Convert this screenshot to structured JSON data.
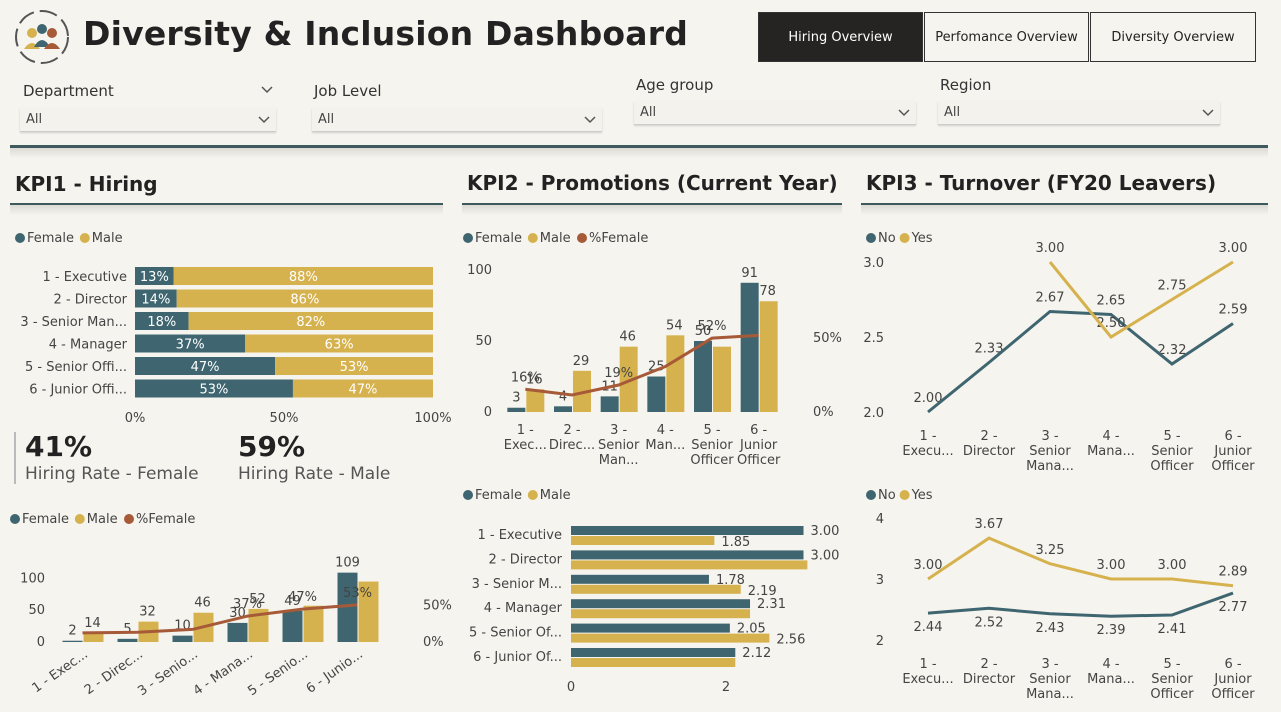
{
  "header": {
    "title": "Diversity & Inclusion Dashboard"
  },
  "nav": {
    "tabs": [
      "Hiring Overview",
      "Perfomance Overview",
      "Diversity Overview"
    ]
  },
  "filters": [
    {
      "label": "Department",
      "value": "All"
    },
    {
      "label": "Job Level",
      "value": "All"
    },
    {
      "label": "Age group",
      "value": "All"
    },
    {
      "label": "Region",
      "value": "All"
    }
  ],
  "colors": {
    "female": "#3f6670",
    "male": "#d6b24f",
    "pct": "#a65a38",
    "dark": "#252423"
  },
  "kpi1": {
    "title": "KPI1 - Hiring",
    "hiring_rate_female": "41%",
    "hiring_rate_female_label": "Hiring Rate - Female",
    "hiring_rate_male": "59%",
    "hiring_rate_male_label": "Hiring Rate - Male"
  },
  "kpi2": {
    "title": "KPI2 - Promotions (Current Year)"
  },
  "kpi3": {
    "title": "KPI3 - Turnover (FY20 Leavers)"
  },
  "chart_data": [
    {
      "id": "hiring-pct",
      "type": "bar",
      "orientation": "horizontal-stacked-100",
      "legend": [
        "Female",
        "Male"
      ],
      "categories": [
        "1 - Executive",
        "2 - Director",
        "3 - Senior Man...",
        "4 - Manager",
        "5 - Senior Offi...",
        "6 - Junior Offi..."
      ],
      "series": [
        {
          "name": "Female",
          "values": [
            13,
            14,
            18,
            37,
            47,
            53
          ],
          "labels": [
            "13%",
            "14%",
            "18%",
            "37%",
            "47%",
            "53%"
          ]
        },
        {
          "name": "Male",
          "values": [
            88,
            86,
            82,
            63,
            53,
            47
          ],
          "labels": [
            "88%",
            "86%",
            "82%",
            "63%",
            "53%",
            "47%"
          ]
        }
      ],
      "xticks": [
        "0%",
        "50%",
        "100%"
      ]
    },
    {
      "id": "hiring-count",
      "type": "bar",
      "legend": [
        "Female",
        "Male",
        "%Female"
      ],
      "categories": [
        "1 - Exec...",
        "2 - Direc...",
        "3 - Senio...",
        "4 - Mana...",
        "5 - Senio...",
        "6 - Junio..."
      ],
      "series": [
        {
          "name": "Female",
          "values": [
            2,
            5,
            10,
            30,
            49,
            109
          ]
        },
        {
          "name": "Male",
          "values": [
            14,
            32,
            46,
            52,
            57,
            95
          ]
        },
        {
          "name": "%Female",
          "values": [
            13,
            14,
            18,
            37,
            47,
            53
          ]
        }
      ],
      "female_labels": [
        "2",
        "5",
        "10",
        "30",
        "49",
        "109"
      ],
      "male_labels": [
        "14",
        "32",
        "46",
        "52",
        "",
        ""
      ],
      "pct_labels": [
        "",
        "",
        "",
        "37%",
        "47%",
        "53%"
      ],
      "yticks_left": [
        "0",
        "50",
        "100"
      ],
      "yticks_right": [
        "0%",
        "50%"
      ],
      "ylim": [
        0,
        110
      ]
    },
    {
      "id": "promo-count",
      "type": "bar",
      "legend": [
        "Female",
        "Male",
        "%Female"
      ],
      "categories": [
        [
          "1 -",
          "Exec..."
        ],
        [
          "2 -",
          "Direc..."
        ],
        [
          "3 -",
          "Senior",
          "Man..."
        ],
        [
          "4 -",
          "Man..."
        ],
        [
          "5 -",
          "Senior",
          "Officer"
        ],
        [
          "6 -",
          "Junior",
          "Officer"
        ]
      ],
      "series": [
        {
          "name": "Female",
          "values": [
            3,
            4,
            11,
            25,
            50,
            91
          ]
        },
        {
          "name": "Male",
          "values": [
            16,
            29,
            46,
            54,
            46,
            78
          ]
        },
        {
          "name": "%Female",
          "values": [
            16,
            12,
            19,
            32,
            52,
            54
          ]
        }
      ],
      "female_labels": [
        "3",
        "4",
        "11",
        "25",
        "50",
        "91"
      ],
      "male_labels": [
        "16",
        "29",
        "46",
        "54",
        "",
        "78"
      ],
      "pct_labels": [
        "16%",
        "",
        "19%",
        "",
        "52%",
        ""
      ],
      "yticks_left": [
        "0",
        "50",
        "100"
      ],
      "yticks_right": [
        "0%",
        "50%"
      ],
      "ylim": [
        0,
        100
      ]
    },
    {
      "id": "promo-years",
      "type": "bar",
      "orientation": "horizontal-grouped",
      "legend": [
        "Female",
        "Male"
      ],
      "categories": [
        "1 - Executive",
        "2 - Director",
        "3 - Senior M...",
        "4 - Manager",
        "5 - Senior Of...",
        "6 - Junior Of..."
      ],
      "series": [
        {
          "name": "Female",
          "values": [
            3.0,
            3.0,
            1.78,
            2.31,
            2.05,
            2.12
          ]
        },
        {
          "name": "Male",
          "values": [
            1.85,
            3.05,
            2.19,
            2.31,
            2.56,
            2.12
          ]
        }
      ],
      "labels": [
        "3.00",
        "1.85",
        "3.00",
        "",
        "1.78",
        "2.19",
        "2.31",
        "",
        "2.05",
        "2.56",
        "2.12",
        ""
      ],
      "xticks": [
        "0",
        "2"
      ]
    },
    {
      "id": "turnover-1",
      "type": "line",
      "legend": [
        "No",
        "Yes"
      ],
      "categories": [
        [
          "1 -",
          "Execu..."
        ],
        [
          "2 -",
          "Director"
        ],
        [
          "3 -",
          "Senior",
          "Mana..."
        ],
        [
          "4 -",
          "Mana..."
        ],
        [
          "5 -",
          "Senior",
          "Officer"
        ],
        [
          "6 -",
          "Junior",
          "Officer"
        ]
      ],
      "series": [
        {
          "name": "No",
          "values": [
            2.0,
            2.33,
            2.67,
            2.65,
            2.32,
            2.59
          ],
          "labels": [
            "2.00",
            "2.33",
            "2.67",
            "2.65",
            "2.32",
            "2.59"
          ]
        },
        {
          "name": "Yes",
          "values": [
            null,
            null,
            3.0,
            2.5,
            2.75,
            3.0
          ],
          "labels": [
            "",
            "",
            "3.00",
            "2.50",
            "2.75",
            "3.00"
          ]
        }
      ],
      "yticks": [
        "2.0",
        "2.5",
        "3.0"
      ],
      "ylim": [
        2.0,
        3.0
      ]
    },
    {
      "id": "turnover-2",
      "type": "line",
      "legend": [
        "No",
        "Yes"
      ],
      "categories": [
        [
          "1 -",
          "Execu..."
        ],
        [
          "2 -",
          "Director"
        ],
        [
          "3 -",
          "Senior",
          "Mana..."
        ],
        [
          "4 -",
          "Mana..."
        ],
        [
          "5 -",
          "Senior",
          "Officer"
        ],
        [
          "6 -",
          "Junior",
          "Officer"
        ]
      ],
      "series": [
        {
          "name": "No",
          "values": [
            2.44,
            2.52,
            2.43,
            2.39,
            2.41,
            2.77
          ],
          "labels": [
            "2.44",
            "2.52",
            "2.43",
            "2.39",
            "2.41",
            "2.77"
          ]
        },
        {
          "name": "Yes",
          "values": [
            3.0,
            3.67,
            3.25,
            3.0,
            3.0,
            2.89
          ],
          "labels": [
            "3.00",
            "3.67",
            "3.25",
            "3.00",
            "3.00",
            "2.89"
          ]
        }
      ],
      "yticks": [
        "2",
        "3",
        "4"
      ],
      "ylim": [
        2,
        4
      ]
    }
  ]
}
